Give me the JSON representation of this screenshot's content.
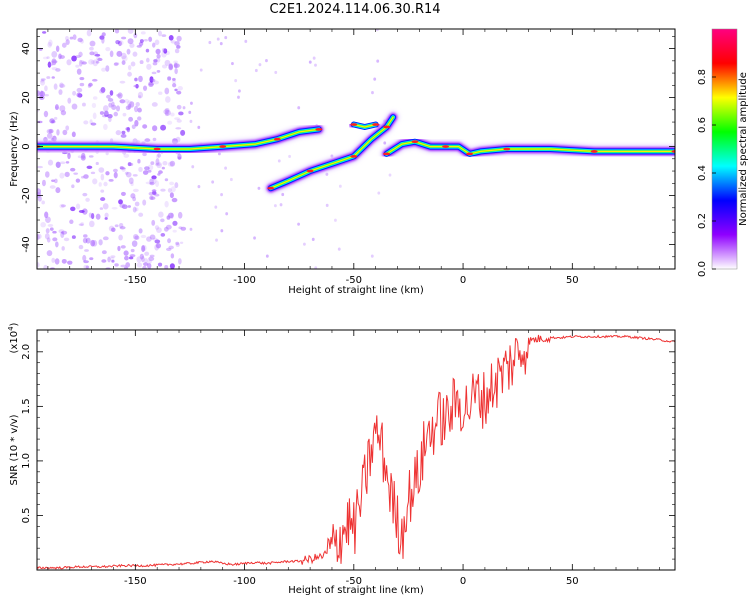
{
  "title": "C2E1.2024.114.06.30.R14",
  "chart_data": [
    {
      "type": "heatmap",
      "xlabel": "Height of straight line (km)",
      "ylabel": "Frequency (Hz)",
      "xlim": [
        -195,
        97
      ],
      "ylim": [
        -50,
        48
      ],
      "xticks": [
        -150,
        -100,
        -50,
        0,
        50
      ],
      "yticks": [
        -40,
        -20,
        0,
        20,
        40
      ],
      "colorbar": {
        "label": "Normalized spectral amplitude",
        "range": [
          0,
          1
        ],
        "ticks": [
          "0.0",
          "0.2",
          "0.4",
          "0.6",
          "0.8"
        ],
        "colors": [
          "#ffffff",
          "#8f00ff",
          "#0000ff",
          "#00ffff",
          "#00ff00",
          "#ffff00",
          "#ff0000",
          "#ff0080"
        ]
      },
      "ridges": [
        {
          "name": "",
          "points": [
            [
              -195,
              0
            ],
            [
              -160,
              0
            ],
            [
              -140,
              -1
            ],
            [
              -125,
              -1
            ],
            [
              -110,
              0
            ],
            [
              -95,
              1
            ],
            [
              -85,
              3
            ],
            [
              -75,
              6
            ],
            [
              -66,
              7
            ]
          ]
        },
        {
          "name": "",
          "points": [
            [
              -88,
              -17
            ],
            [
              -80,
              -14
            ],
            [
              -70,
              -10
            ],
            [
              -60,
              -7
            ],
            [
              -50,
              -4
            ],
            [
              -42,
              3
            ],
            [
              -35,
              8
            ],
            [
              -32,
              12
            ]
          ]
        },
        {
          "name": "",
          "points": [
            [
              -50,
              9
            ],
            [
              -45,
              8
            ],
            [
              -40,
              9
            ]
          ]
        },
        {
          "name": "",
          "points": [
            [
              -35,
              -3
            ],
            [
              -28,
              1
            ],
            [
              -22,
              2
            ],
            [
              -15,
              0
            ],
            [
              -8,
              0
            ],
            [
              -2,
              0
            ],
            [
              3,
              -3
            ],
            [
              8,
              -2
            ],
            [
              20,
              -1
            ],
            [
              40,
              -1
            ],
            [
              60,
              -2
            ],
            [
              75,
              -2
            ],
            [
              97,
              -2
            ]
          ]
        }
      ]
    },
    {
      "type": "line",
      "xlabel": "Height of straight line (km)",
      "ylabel": "SNR (10 * v/v)",
      "yscale_label": "(x10^4)",
      "xlim": [
        -195,
        97
      ],
      "ylim": [
        0,
        2.2
      ],
      "xticks": [
        -150,
        -100,
        -50,
        0,
        50
      ],
      "yticks": [
        0.5,
        1.0,
        1.5,
        2.0
      ],
      "ytick_labels": [
        "0.5",
        "1.0",
        "1.5",
        "2.0"
      ],
      "series": [
        {
          "name": "",
          "color": "#ee3333",
          "x": [
            -195,
            -185,
            -175,
            -165,
            -155,
            -145,
            -135,
            -125,
            -115,
            -110,
            -105,
            -100,
            -95,
            -90,
            -85,
            -80,
            -75,
            -70,
            -65,
            -60,
            -58,
            -55,
            -52,
            -50,
            -48,
            -46,
            -44,
            -42,
            -40,
            -38,
            -36,
            -34,
            -32,
            -30,
            -28,
            -26,
            -24,
            -22,
            -20,
            -18,
            -16,
            -14,
            -12,
            -10,
            -8,
            -6,
            -4,
            -2,
            0,
            2,
            4,
            6,
            8,
            10,
            12,
            14,
            16,
            18,
            20,
            22,
            24,
            26,
            28,
            30,
            35,
            40,
            45,
            50,
            55,
            60,
            65,
            70,
            75,
            80,
            85,
            90,
            97
          ],
          "y": [
            0.02,
            0.02,
            0.03,
            0.03,
            0.04,
            0.04,
            0.05,
            0.06,
            0.08,
            0.06,
            0.05,
            0.06,
            0.07,
            0.06,
            0.07,
            0.08,
            0.08,
            0.1,
            0.12,
            0.18,
            0.25,
            0.35,
            0.45,
            0.35,
            0.55,
            0.7,
            0.9,
            1.1,
            1.25,
            1.2,
            1.0,
            0.8,
            0.6,
            0.45,
            0.3,
            0.6,
            0.7,
            0.8,
            0.9,
            1.1,
            1.25,
            1.3,
            1.35,
            1.4,
            1.35,
            1.45,
            1.5,
            1.55,
            1.5,
            1.5,
            1.55,
            1.6,
            1.6,
            1.55,
            1.65,
            1.7,
            1.75,
            1.8,
            1.85,
            1.9,
            1.95,
            2.0,
            2.05,
            2.1,
            2.12,
            2.13,
            2.13,
            2.14,
            2.14,
            2.14,
            2.14,
            2.14,
            2.14,
            2.13,
            2.12,
            2.11,
            2.09
          ]
        }
      ]
    }
  ]
}
